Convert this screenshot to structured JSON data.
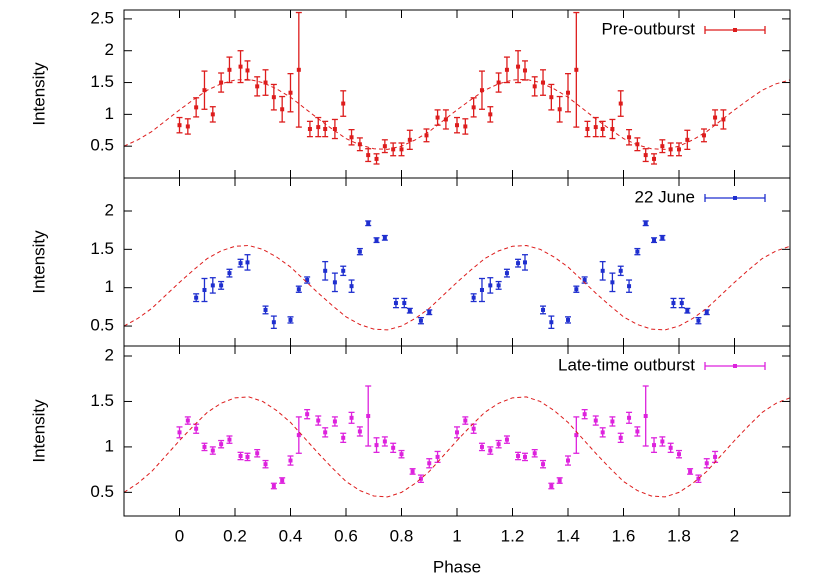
{
  "chart_data": [
    {
      "type": "errorbar",
      "y_label": "Intensity",
      "xlim": [
        -0.2,
        2.2
      ],
      "ylim": [
        0,
        2.64
      ],
      "xticks": [
        0,
        0.2,
        0.4,
        0.6,
        0.8,
        1,
        1.2,
        1.4,
        1.6,
        1.8,
        2
      ],
      "yticks": [
        0.5,
        1,
        1.5,
        2,
        2.5
      ],
      "legend": "upper right",
      "series": [
        {
          "name": "Pre-outburst",
          "color": "#dd1c1c",
          "x": [
            0.0,
            0.03,
            0.06,
            0.09,
            0.12,
            0.15,
            0.18,
            0.22,
            0.245,
            0.28,
            0.31,
            0.34,
            0.37,
            0.4,
            0.43,
            0.47,
            0.5,
            0.525,
            0.56,
            0.59,
            0.62,
            0.65,
            0.68,
            0.71,
            0.74,
            0.77,
            0.8,
            0.83,
            0.89,
            0.93,
            0.96,
            1.0,
            1.03,
            1.06,
            1.09,
            1.12,
            1.15,
            1.18,
            1.22,
            1.245,
            1.28,
            1.31,
            1.34,
            1.37,
            1.4,
            1.43,
            1.47,
            1.5,
            1.525,
            1.56,
            1.59,
            1.62,
            1.65,
            1.68,
            1.71,
            1.74,
            1.77,
            1.8,
            1.83,
            1.89,
            1.93,
            1.96
          ],
          "values": [
            0.83,
            0.81,
            1.11,
            1.38,
            1.0,
            1.5,
            1.7,
            1.75,
            1.69,
            1.44,
            1.5,
            1.27,
            1.08,
            1.34,
            1.7,
            0.77,
            0.8,
            0.77,
            0.77,
            1.17,
            0.64,
            0.53,
            0.36,
            0.3,
            0.5,
            0.45,
            0.45,
            0.6,
            0.67,
            0.95,
            0.92,
            0.83,
            0.81,
            1.11,
            1.38,
            1.0,
            1.5,
            1.7,
            1.75,
            1.69,
            1.44,
            1.5,
            1.27,
            1.08,
            1.34,
            1.7,
            0.77,
            0.8,
            0.77,
            0.77,
            1.17,
            0.64,
            0.53,
            0.36,
            0.3,
            0.5,
            0.45,
            0.45,
            0.6,
            0.67,
            0.95,
            0.92
          ],
          "errors": [
            0.12,
            0.12,
            0.15,
            0.3,
            0.12,
            0.15,
            0.2,
            0.25,
            0.15,
            0.15,
            0.2,
            0.2,
            0.2,
            0.3,
            0.9,
            0.12,
            0.15,
            0.12,
            0.15,
            0.2,
            0.12,
            0.1,
            0.1,
            0.08,
            0.1,
            0.1,
            0.1,
            0.15,
            0.1,
            0.12,
            0.15,
            0.12,
            0.12,
            0.15,
            0.3,
            0.12,
            0.15,
            0.2,
            0.25,
            0.15,
            0.15,
            0.2,
            0.2,
            0.2,
            0.3,
            0.9,
            0.12,
            0.15,
            0.12,
            0.15,
            0.2,
            0.12,
            0.1,
            0.1,
            0.08,
            0.1,
            0.1,
            0.1,
            0.15,
            0.1,
            0.12,
            0.15
          ]
        },
        {
          "color": "#dd1c1c",
          "dashed": true,
          "x": [
            -0.2,
            -0.15,
            -0.1,
            -0.05,
            0,
            0.05,
            0.1,
            0.15,
            0.2,
            0.25,
            0.3,
            0.35,
            0.4,
            0.45,
            0.5,
            0.55,
            0.6,
            0.65,
            0.7,
            0.75,
            0.8,
            0.85,
            0.9,
            0.95,
            1,
            1.05,
            1.1,
            1.15,
            1.2,
            1.25,
            1.3,
            1.35,
            1.4,
            1.45,
            1.5,
            1.55,
            1.6,
            1.65,
            1.7,
            1.75,
            1.8,
            1.85,
            1.9,
            1.95,
            2,
            2.05,
            2.1,
            2.15,
            2.2
          ],
          "values": [
            0.5,
            0.6,
            0.73,
            0.9,
            1.07,
            1.23,
            1.38,
            1.48,
            1.54,
            1.55,
            1.5,
            1.4,
            1.27,
            1.1,
            0.93,
            0.77,
            0.62,
            0.52,
            0.46,
            0.45,
            0.5,
            0.6,
            0.73,
            0.9,
            1.07,
            1.23,
            1.38,
            1.48,
            1.54,
            1.55,
            1.5,
            1.4,
            1.27,
            1.1,
            0.93,
            0.77,
            0.62,
            0.52,
            0.46,
            0.45,
            0.5,
            0.6,
            0.73,
            0.9,
            1.07,
            1.23,
            1.38,
            1.48,
            1.54
          ]
        }
      ]
    },
    {
      "type": "errorbar",
      "y_label": "Intensity",
      "xlim": [
        -0.2,
        2.2
      ],
      "ylim": [
        0.24,
        2.43
      ],
      "xticks": [
        0,
        0.2,
        0.4,
        0.6,
        0.8,
        1,
        1.2,
        1.4,
        1.6,
        1.8,
        2
      ],
      "yticks": [
        0.5,
        1,
        1.5,
        2
      ],
      "legend": "upper right",
      "series": [
        {
          "name": "22 June",
          "color": "#1f2fcf",
          "x": [
            0.06,
            0.09,
            0.12,
            0.15,
            0.18,
            0.22,
            0.245,
            0.31,
            0.34,
            0.4,
            0.43,
            0.46,
            0.525,
            0.56,
            0.59,
            0.62,
            0.65,
            0.68,
            0.71,
            0.74,
            0.78,
            0.81,
            0.83,
            0.87,
            0.9,
            1.06,
            1.09,
            1.12,
            1.15,
            1.18,
            1.22,
            1.245,
            1.31,
            1.34,
            1.4,
            1.43,
            1.46,
            1.525,
            1.56,
            1.59,
            1.62,
            1.65,
            1.68,
            1.71,
            1.74,
            1.78,
            1.81,
            1.83,
            1.87,
            1.9
          ],
          "values": [
            0.87,
            0.97,
            1.03,
            1.03,
            1.19,
            1.32,
            1.33,
            0.71,
            0.55,
            0.58,
            0.98,
            1.1,
            1.22,
            1.07,
            1.22,
            1.02,
            1.47,
            1.84,
            1.62,
            1.65,
            0.8,
            0.8,
            0.7,
            0.57,
            0.68,
            0.87,
            0.97,
            1.03,
            1.03,
            1.19,
            1.32,
            1.33,
            0.71,
            0.55,
            0.58,
            0.98,
            1.1,
            1.22,
            1.07,
            1.22,
            1.02,
            1.47,
            1.84,
            1.62,
            1.65,
            0.8,
            0.8,
            0.7,
            0.57,
            0.68
          ],
          "errors": [
            0.05,
            0.15,
            0.1,
            0.05,
            0.05,
            0.05,
            0.1,
            0.05,
            0.08,
            0.04,
            0.04,
            0.04,
            0.12,
            0.12,
            0.06,
            0.08,
            0.04,
            0.03,
            0.03,
            0.03,
            0.06,
            0.06,
            0.03,
            0.04,
            0.03,
            0.05,
            0.15,
            0.1,
            0.05,
            0.05,
            0.05,
            0.1,
            0.05,
            0.08,
            0.04,
            0.04,
            0.04,
            0.12,
            0.12,
            0.06,
            0.08,
            0.04,
            0.03,
            0.03,
            0.03,
            0.06,
            0.06,
            0.03,
            0.04,
            0.03
          ]
        },
        {
          "color": "#dd1c1c",
          "dashed": true,
          "x": [
            -0.2,
            -0.15,
            -0.1,
            -0.05,
            0,
            0.05,
            0.1,
            0.15,
            0.2,
            0.25,
            0.3,
            0.35,
            0.4,
            0.45,
            0.5,
            0.55,
            0.6,
            0.65,
            0.7,
            0.75,
            0.8,
            0.85,
            0.9,
            0.95,
            1,
            1.05,
            1.1,
            1.15,
            1.2,
            1.25,
            1.3,
            1.35,
            1.4,
            1.45,
            1.5,
            1.55,
            1.6,
            1.65,
            1.7,
            1.75,
            1.8,
            1.85,
            1.9,
            1.95,
            2,
            2.05,
            2.1,
            2.15,
            2.2
          ],
          "values": [
            0.5,
            0.6,
            0.73,
            0.9,
            1.07,
            1.23,
            1.38,
            1.48,
            1.54,
            1.55,
            1.5,
            1.4,
            1.27,
            1.1,
            0.93,
            0.77,
            0.62,
            0.52,
            0.46,
            0.45,
            0.5,
            0.6,
            0.73,
            0.9,
            1.07,
            1.23,
            1.38,
            1.48,
            1.54,
            1.55,
            1.5,
            1.4,
            1.27,
            1.1,
            0.93,
            0.77,
            0.62,
            0.52,
            0.46,
            0.45,
            0.5,
            0.6,
            0.73,
            0.9,
            1.07,
            1.23,
            1.38,
            1.48,
            1.54
          ]
        }
      ]
    },
    {
      "type": "errorbar",
      "y_label": "Intensity",
      "x_label": "Phase",
      "xlim": [
        -0.2,
        2.2
      ],
      "ylim": [
        0.24,
        2.11
      ],
      "xticks": [
        0,
        0.2,
        0.4,
        0.6,
        0.8,
        1,
        1.2,
        1.4,
        1.6,
        1.8,
        2
      ],
      "yticks": [
        0.5,
        1,
        1.5,
        2
      ],
      "legend": "upper right",
      "series": [
        {
          "name": "Late-time outburst",
          "color": "#dd22dd",
          "x": [
            0.0,
            0.03,
            0.06,
            0.09,
            0.12,
            0.15,
            0.18,
            0.22,
            0.245,
            0.28,
            0.31,
            0.34,
            0.37,
            0.4,
            0.43,
            0.46,
            0.5,
            0.525,
            0.56,
            0.59,
            0.62,
            0.65,
            0.68,
            0.71,
            0.74,
            0.77,
            0.8,
            0.84,
            0.87,
            0.9,
            0.93,
            1.0,
            1.03,
            1.06,
            1.09,
            1.12,
            1.15,
            1.18,
            1.22,
            1.245,
            1.28,
            1.31,
            1.34,
            1.37,
            1.4,
            1.43,
            1.46,
            1.5,
            1.525,
            1.56,
            1.59,
            1.62,
            1.65,
            1.68,
            1.71,
            1.74,
            1.77,
            1.8,
            1.84,
            1.87,
            1.9,
            1.93
          ],
          "values": [
            1.16,
            1.29,
            1.2,
            1.0,
            0.96,
            1.03,
            1.08,
            0.9,
            0.89,
            0.93,
            0.81,
            0.57,
            0.63,
            0.85,
            1.13,
            1.36,
            1.29,
            1.16,
            1.28,
            1.1,
            1.32,
            1.17,
            1.34,
            1.02,
            1.06,
            0.99,
            0.92,
            0.73,
            0.65,
            0.82,
            0.89,
            1.16,
            1.29,
            1.2,
            1.0,
            0.96,
            1.03,
            1.08,
            0.9,
            0.89,
            0.93,
            0.81,
            0.57,
            0.63,
            0.85,
            1.13,
            1.36,
            1.29,
            1.16,
            1.28,
            1.1,
            1.32,
            1.17,
            1.34,
            1.02,
            1.06,
            0.99,
            0.92,
            0.73,
            0.65,
            0.82,
            0.89
          ],
          "errors": [
            0.06,
            0.04,
            0.05,
            0.04,
            0.04,
            0.04,
            0.04,
            0.04,
            0.04,
            0.04,
            0.04,
            0.03,
            0.03,
            0.05,
            0.2,
            0.05,
            0.05,
            0.05,
            0.05,
            0.05,
            0.06,
            0.05,
            0.33,
            0.08,
            0.05,
            0.05,
            0.04,
            0.03,
            0.04,
            0.05,
            0.06,
            0.06,
            0.04,
            0.05,
            0.04,
            0.04,
            0.04,
            0.04,
            0.04,
            0.04,
            0.04,
            0.04,
            0.03,
            0.03,
            0.05,
            0.2,
            0.05,
            0.05,
            0.05,
            0.05,
            0.05,
            0.06,
            0.05,
            0.33,
            0.08,
            0.05,
            0.05,
            0.04,
            0.03,
            0.04,
            0.05,
            0.06
          ]
        },
        {
          "color": "#dd1c1c",
          "dashed": true,
          "x": [
            -0.2,
            -0.15,
            -0.1,
            -0.05,
            0,
            0.05,
            0.1,
            0.15,
            0.2,
            0.25,
            0.3,
            0.35,
            0.4,
            0.45,
            0.5,
            0.55,
            0.6,
            0.65,
            0.7,
            0.75,
            0.8,
            0.85,
            0.9,
            0.95,
            1,
            1.05,
            1.1,
            1.15,
            1.2,
            1.25,
            1.3,
            1.35,
            1.4,
            1.45,
            1.5,
            1.55,
            1.6,
            1.65,
            1.7,
            1.75,
            1.8,
            1.85,
            1.9,
            1.95,
            2,
            2.05,
            2.1,
            2.15,
            2.2
          ],
          "values": [
            0.5,
            0.6,
            0.73,
            0.9,
            1.07,
            1.23,
            1.38,
            1.48,
            1.54,
            1.55,
            1.5,
            1.4,
            1.27,
            1.1,
            0.93,
            0.77,
            0.62,
            0.52,
            0.46,
            0.45,
            0.5,
            0.6,
            0.73,
            0.9,
            1.07,
            1.23,
            1.38,
            1.48,
            1.54,
            1.55,
            1.5,
            1.4,
            1.27,
            1.1,
            0.93,
            0.77,
            0.62,
            0.52,
            0.46,
            0.45,
            0.5,
            0.6,
            0.73,
            0.9,
            1.07,
            1.23,
            1.38,
            1.48,
            1.54
          ]
        }
      ]
    }
  ]
}
